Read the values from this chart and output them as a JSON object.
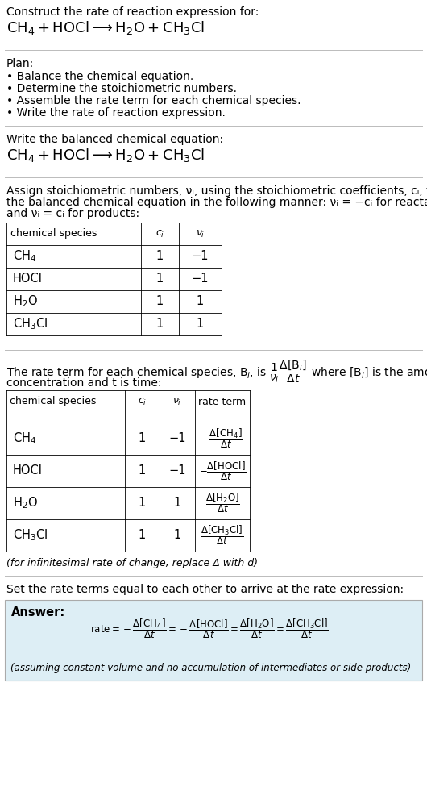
{
  "bg_color": "#ffffff",
  "title_line1": "Construct the rate of reaction expression for:",
  "plan_header": "Plan:",
  "plan_items": [
    "• Balance the chemical equation.",
    "• Determine the stoichiometric numbers.",
    "• Assemble the rate term for each chemical species.",
    "• Write the rate of reaction expression."
  ],
  "section2_header": "Write the balanced chemical equation:",
  "section3_lines": [
    "Assign stoichiometric numbers, νᵢ, using the stoichiometric coefficients, cᵢ, from",
    "the balanced chemical equation in the following manner: νᵢ = −cᵢ for reactants",
    "and νᵢ = cᵢ for products:"
  ],
  "section4_line2": "concentration and t is time:",
  "infinitesimal_note": "(for infinitesimal rate of change, replace Δ with d)",
  "section5_header": "Set the rate terms equal to each other to arrive at the rate expression:",
  "answer_label": "Answer:",
  "answer_bg": "#e8f4f8",
  "answer_border": "#aaaaaa",
  "answer_note": "(assuming constant volume and no accumulation of intermediates or side products)"
}
